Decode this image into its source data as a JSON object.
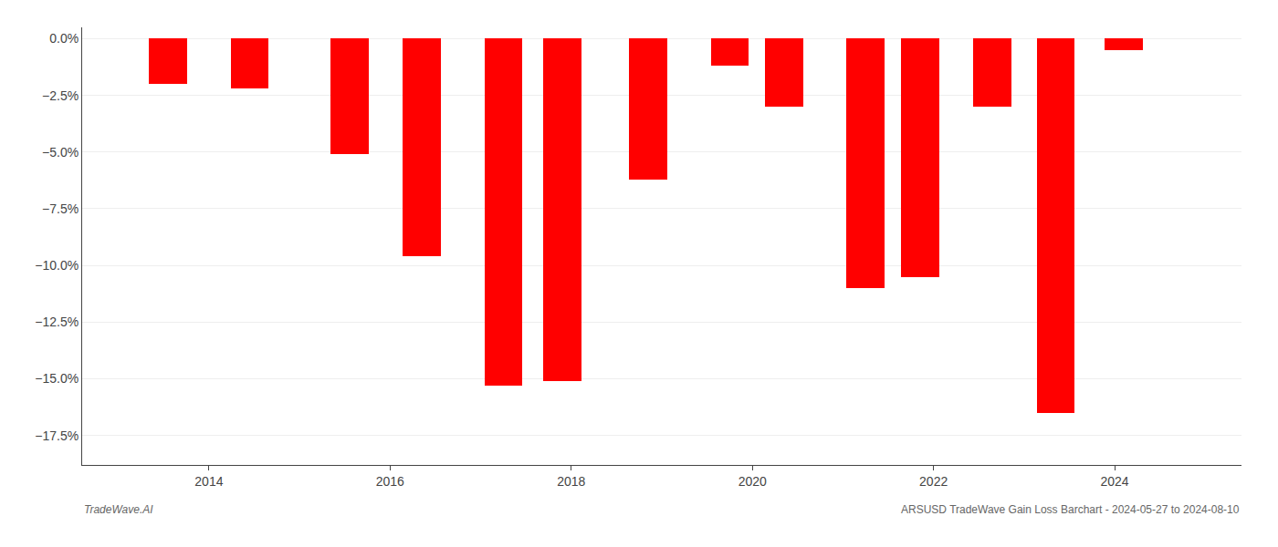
{
  "chart_data": {
    "type": "bar",
    "x": [
      2013.55,
      2014.45,
      2015.55,
      2016.35,
      2017.25,
      2017.9,
      2018.85,
      2019.75,
      2020.35,
      2021.25,
      2021.85,
      2022.65,
      2023.35,
      2024.1
    ],
    "values": [
      -2.0,
      -2.2,
      -5.1,
      -9.6,
      -15.3,
      -15.1,
      -6.2,
      -1.2,
      -3.0,
      -11.0,
      -10.5,
      -3.0,
      -16.5,
      -0.5
    ],
    "color": "#ff0000",
    "xlim": [
      2012.6,
      2025.4
    ],
    "xticks": [
      2014,
      2016,
      2018,
      2020,
      2022,
      2024
    ],
    "ylim": [
      -18.8,
      0.5
    ],
    "yticks": [
      {
        "value": 0.0,
        "label": "0.0%"
      },
      {
        "value": -2.5,
        "label": "−2.5%"
      },
      {
        "value": -5.0,
        "label": "−5.0%"
      },
      {
        "value": -7.5,
        "label": "−7.5%"
      },
      {
        "value": -10.0,
        "label": "−10.0%"
      },
      {
        "value": -12.5,
        "label": "−12.5%"
      },
      {
        "value": -15.0,
        "label": "−15.0%"
      },
      {
        "value": -17.5,
        "label": "−17.5%"
      }
    ],
    "grid": true,
    "annotations": [
      "TradeWave.AI",
      "ARSUSD TradeWave Gain Loss Barchart - 2024-05-27 to 2024-08-10"
    ]
  }
}
